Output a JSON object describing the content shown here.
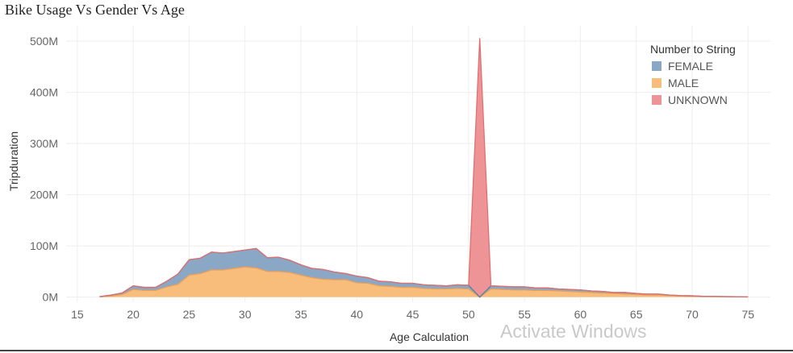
{
  "watermark": "Activate Windows",
  "chart_data": {
    "type": "area",
    "stacked": true,
    "title": "Bike Usage Vs Gender Vs Age",
    "xlabel": "Age Calculation",
    "ylabel": "Tripduration",
    "xlim": [
      14,
      77
    ],
    "ylim": [
      -10,
      530
    ],
    "x_ticks": [
      15,
      20,
      25,
      30,
      35,
      40,
      45,
      50,
      55,
      60,
      65,
      70,
      75
    ],
    "y_ticks": [
      0,
      100,
      200,
      300,
      400,
      500
    ],
    "y_tick_labels": [
      "0M",
      "100M",
      "200M",
      "300M",
      "400M",
      "500M"
    ],
    "grid": true,
    "legend": {
      "title": "Number to String",
      "position": "top-right"
    },
    "x": [
      17,
      18,
      19,
      20,
      21,
      22,
      23,
      24,
      25,
      26,
      27,
      28,
      29,
      30,
      31,
      32,
      33,
      34,
      35,
      36,
      37,
      38,
      39,
      40,
      41,
      42,
      43,
      44,
      45,
      46,
      47,
      48,
      49,
      50,
      51,
      52,
      53,
      54,
      55,
      56,
      57,
      58,
      59,
      60,
      61,
      62,
      63,
      64,
      65,
      66,
      67,
      68,
      69,
      70,
      71,
      72,
      73,
      74,
      75
    ],
    "series": [
      {
        "name": "MALE",
        "color": "#f8bc7b",
        "line_color": "#e8a05a",
        "values": [
          0.5,
          2,
          5,
          15,
          13,
          13,
          20,
          25,
          43,
          46,
          53,
          53,
          56,
          59,
          57,
          50,
          50,
          48,
          43,
          38,
          35,
          34,
          34,
          28,
          27,
          22,
          21,
          19,
          19,
          17,
          16,
          16,
          17,
          16,
          0,
          16,
          15,
          14,
          14,
          13,
          13,
          12,
          11,
          10,
          9,
          8,
          7,
          6,
          5,
          4,
          4,
          3,
          2,
          1.5,
          1,
          0.8,
          0.6,
          0.4,
          0.2
        ]
      },
      {
        "name": "FEMALE",
        "color": "#8ba7c6",
        "line_color": "#5a7ea3",
        "values": [
          0.5,
          2,
          3,
          7,
          6,
          6,
          11,
          20,
          30,
          30,
          35,
          33,
          33,
          33,
          38,
          27,
          28,
          24,
          20,
          18,
          19,
          15,
          12,
          13,
          11,
          9,
          9,
          8,
          8,
          7,
          7,
          6,
          7,
          7,
          0,
          6,
          6,
          6,
          6,
          5,
          5,
          4,
          4,
          4,
          3,
          3,
          2,
          3,
          2,
          2,
          2,
          1,
          1,
          1,
          0.5,
          0.5,
          0.4,
          0.3,
          0.2
        ]
      },
      {
        "name": "UNKNOWN",
        "color": "#ef9496",
        "line_color": "#e07070",
        "values": [
          0,
          0,
          0,
          0,
          0,
          0,
          0,
          0,
          0,
          0,
          0,
          0,
          0,
          0,
          0,
          0,
          0,
          0,
          0,
          0,
          0,
          0,
          0,
          0,
          0,
          0,
          0,
          0,
          0,
          0,
          0,
          0,
          0,
          0,
          506,
          0,
          0,
          0,
          0,
          0,
          0,
          0,
          0,
          0,
          0,
          0,
          0,
          0,
          0,
          0,
          0,
          0,
          0,
          0,
          0,
          0,
          0,
          0,
          0
        ]
      }
    ],
    "legend_order": [
      "FEMALE",
      "MALE",
      "UNKNOWN"
    ]
  }
}
